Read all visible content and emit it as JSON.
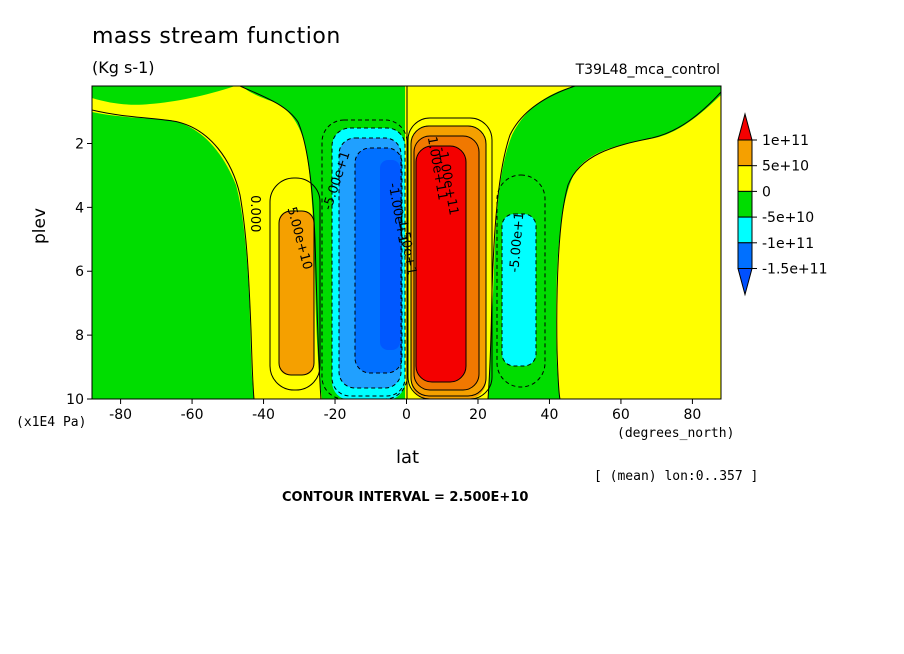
{
  "chart_data": {
    "type": "heatmap",
    "subtype": "filled-contour",
    "title": "mass stream function",
    "subtitle": "(Kg s-1)",
    "run_label": "T39L48_mca_control",
    "xlabel": "lat",
    "x_unit": "(degrees_north)",
    "ylabel": "plev",
    "y_unit": "(x1E4 Pa)",
    "xlim": [
      -88,
      88
    ],
    "ylim": [
      10,
      0.2
    ],
    "y_inverted": true,
    "x_ticks": [
      -80,
      -60,
      -40,
      -20,
      0,
      20,
      40,
      60,
      80
    ],
    "x_tick_labels": [
      "-80",
      "-60",
      "-40",
      "-20",
      "0",
      "20",
      "40",
      "60",
      "80"
    ],
    "y_ticks": [
      2,
      4,
      6,
      8,
      10
    ],
    "y_tick_labels": [
      "2",
      "4",
      "6",
      "8",
      "10"
    ],
    "averaging_note": "[ (mean) lon:0..357 ]",
    "contour_interval_text": "CONTOUR INTERVAL = 2.500E+10",
    "colorbar": {
      "labels": [
        "1e+11",
        "5e+10",
        "0",
        "-5e+10",
        "-1e+11",
        "-1.5e+11"
      ],
      "colors": [
        "#f40000",
        "#f5a000",
        "#ffff00",
        "#00dd00",
        "#00ffff",
        "#0070ff",
        "#0050ff"
      ]
    },
    "features": [
      {
        "name": "northern Hadley cell",
        "lat_center": 8,
        "lat_range": [
          1,
          20
        ],
        "plev_range": [
          1.6,
          9.5
        ],
        "max_approx": 150000000000.0,
        "sign": "positive"
      },
      {
        "name": "southern Hadley cell",
        "lat_center": -10,
        "lat_range": [
          -20,
          -1
        ],
        "plev_range": [
          1.7,
          9.3
        ],
        "min_approx": -150000000000.0,
        "sign": "negative"
      },
      {
        "name": "southern Ferrel cell",
        "lat_center": -32,
        "lat_range": [
          -37,
          -25
        ],
        "plev_range": [
          4.1,
          8.8
        ],
        "max_approx": 50000000000.0,
        "sign": "positive"
      },
      {
        "name": "northern Ferrel cell",
        "lat_center": 32,
        "lat_range": [
          27,
          37
        ],
        "plev_range": [
          4.1,
          8.8
        ],
        "min_approx": -50000000000.0,
        "sign": "negative"
      }
    ],
    "contour_labels": [
      "0.000",
      "5.00e+10",
      "-5.00e+1",
      "-1.00e+1",
      "-1.50e+1",
      "-1.00e+11",
      "1.00e+11",
      "-5.00e+1"
    ]
  }
}
